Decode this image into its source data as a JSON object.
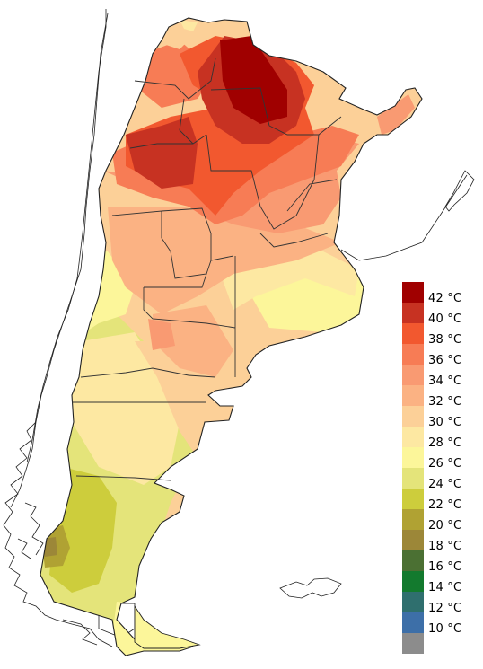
{
  "legend": {
    "entries": [
      {
        "label": "42 °C",
        "color": "#a00000"
      },
      {
        "label": "40 °C",
        "color": "#c73222"
      },
      {
        "label": "38 °C",
        "color": "#f2582f"
      },
      {
        "label": "36 °C",
        "color": "#f77c55"
      },
      {
        "label": "34 °C",
        "color": "#f99a72"
      },
      {
        "label": "32 °C",
        "color": "#fbb283"
      },
      {
        "label": "30 °C",
        "color": "#fcd098"
      },
      {
        "label": "28 °C",
        "color": "#fde8a2"
      },
      {
        "label": "26 °C",
        "color": "#fcf69a"
      },
      {
        "label": "24 °C",
        "color": "#e4e47a"
      },
      {
        "label": "22 °C",
        "color": "#cdcd3c"
      },
      {
        "label": "20 °C",
        "color": "#b0a233"
      },
      {
        "label": "18 °C",
        "color": "#9c8738"
      },
      {
        "label": "16 °C",
        "color": "#4b7033"
      },
      {
        "label": "14 °C",
        "color": "#137a2e"
      },
      {
        "label": "12 °C",
        "color": "#2f6f6e"
      },
      {
        "label": "10 °C",
        "color": "#3d6fa8"
      },
      {
        "label": "",
        "color": "#8c8c8c"
      }
    ]
  }
}
